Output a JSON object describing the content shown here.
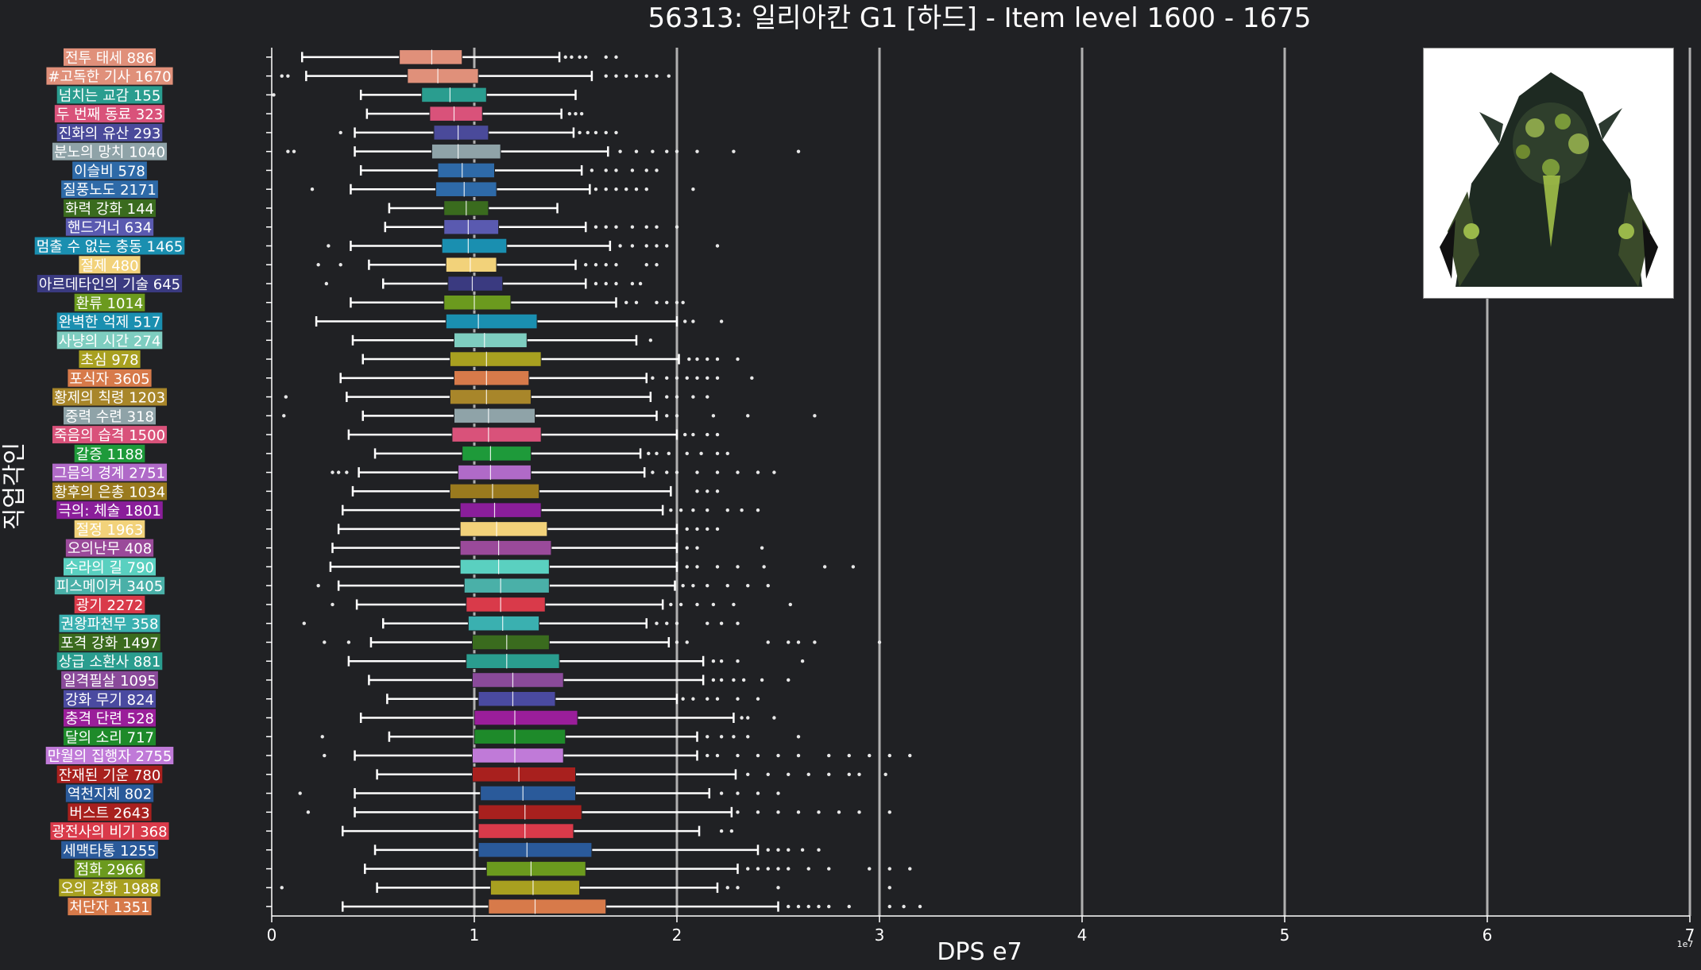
{
  "chart_data": {
    "type": "boxplot",
    "orientation": "horizontal",
    "title": "56313: 일리아칸 G1 [하드] - Item level 1600 - 1675",
    "xlabel": "DPS e7",
    "ylabel": "직업각인",
    "x_offset_label": "1e7",
    "xlim": [
      0,
      7
    ],
    "xticks": [
      0,
      1,
      2,
      3,
      4,
      5,
      6,
      7
    ],
    "grid": "vertical",
    "legend": "none",
    "series": [
      {
        "label": "전투 태세 886",
        "color": "#e0907a",
        "whisker_low": 0.15,
        "q1": 0.63,
        "median": 0.79,
        "q3": 0.94,
        "whisker_high": 1.42,
        "outliers": [
          1.45,
          1.48,
          1.52,
          1.55,
          1.65,
          1.7
        ]
      },
      {
        "label": "#고독한 기사 1670",
        "color": "#e0907a",
        "whisker_low": 0.17,
        "q1": 0.67,
        "median": 0.82,
        "q3": 1.02,
        "whisker_high": 1.58,
        "outliers": [
          0.05,
          0.08,
          1.65,
          1.7,
          1.75,
          1.8,
          1.85,
          1.9,
          1.96
        ]
      },
      {
        "label": "넘치는 교감 155",
        "color": "#2a9d8f",
        "whisker_low": 0.44,
        "q1": 0.74,
        "median": 0.88,
        "q3": 1.06,
        "whisker_high": 1.5,
        "outliers": [
          0.01
        ]
      },
      {
        "label": "두 번째 동료 323",
        "color": "#d9527a",
        "whisker_low": 0.47,
        "q1": 0.78,
        "median": 0.9,
        "q3": 1.04,
        "whisker_high": 1.43,
        "outliers": [
          1.47,
          1.5,
          1.53
        ]
      },
      {
        "label": "진화의 유산 293",
        "color": "#4a4a9a",
        "whisker_low": 0.41,
        "q1": 0.8,
        "median": 0.92,
        "q3": 1.07,
        "whisker_high": 1.49,
        "outliers": [
          0.34,
          1.52,
          1.56,
          1.6,
          1.65,
          1.7
        ]
      },
      {
        "label": "분노의 망치 1040",
        "color": "#8fa3a8",
        "whisker_low": 0.41,
        "q1": 0.79,
        "median": 0.92,
        "q3": 1.13,
        "whisker_high": 1.66,
        "outliers": [
          0.08,
          0.11,
          1.72,
          1.8,
          1.88,
          1.95,
          2.0,
          2.1,
          2.28,
          2.6
        ]
      },
      {
        "label": "이슬비 578",
        "color": "#2e6aa8",
        "whisker_low": 0.44,
        "q1": 0.82,
        "median": 0.94,
        "q3": 1.1,
        "whisker_high": 1.53,
        "outliers": [
          1.58,
          1.65,
          1.7,
          1.78,
          1.85,
          1.9
        ]
      },
      {
        "label": "질풍노도 2171",
        "color": "#2e6aa8",
        "whisker_low": 0.39,
        "q1": 0.81,
        "median": 0.95,
        "q3": 1.11,
        "whisker_high": 1.57,
        "outliers": [
          0.2,
          1.6,
          1.65,
          1.7,
          1.75,
          1.8,
          1.85,
          2.08
        ]
      },
      {
        "label": "화력 강화 144",
        "color": "#3a6b1e",
        "whisker_low": 0.58,
        "q1": 0.85,
        "median": 0.96,
        "q3": 1.07,
        "whisker_high": 1.41,
        "outliers": []
      },
      {
        "label": "핸드거너 634",
        "color": "#5a5ab0",
        "whisker_low": 0.56,
        "q1": 0.85,
        "median": 0.97,
        "q3": 1.12,
        "whisker_high": 1.55,
        "outliers": [
          1.6,
          1.65,
          1.7,
          1.78,
          1.85,
          1.9,
          2.0
        ]
      },
      {
        "label": "멈출 수 없는 충동 1465",
        "color": "#1a8fb0",
        "whisker_low": 0.39,
        "q1": 0.84,
        "median": 0.97,
        "q3": 1.16,
        "whisker_high": 1.67,
        "outliers": [
          0.28,
          1.72,
          1.78,
          1.85,
          1.9,
          1.95,
          2.2
        ]
      },
      {
        "label": "절제 480",
        "color": "#f2d27a",
        "whisker_low": 0.48,
        "q1": 0.86,
        "median": 0.98,
        "q3": 1.11,
        "whisker_high": 1.5,
        "outliers": [
          0.23,
          0.34,
          1.55,
          1.6,
          1.65,
          1.7,
          1.85,
          1.9
        ]
      },
      {
        "label": "아르데타인의 기술 645",
        "color": "#3a3a80",
        "whisker_low": 0.55,
        "q1": 0.87,
        "median": 0.99,
        "q3": 1.14,
        "whisker_high": 1.55,
        "outliers": [
          0.27,
          1.6,
          1.65,
          1.7,
          1.78,
          1.82
        ]
      },
      {
        "label": "환류 1014",
        "color": "#6b9a1e",
        "whisker_low": 0.39,
        "q1": 0.85,
        "median": 1.0,
        "q3": 1.18,
        "whisker_high": 1.7,
        "outliers": [
          1.75,
          1.8,
          1.9,
          1.95,
          2.0,
          2.03
        ]
      },
      {
        "label": "완벽한 억제 517",
        "color": "#1a8fb0",
        "whisker_low": 0.22,
        "q1": 0.86,
        "median": 1.02,
        "q3": 1.31,
        "whisker_high": 2.0,
        "outliers": [
          2.04,
          2.08,
          2.22
        ]
      },
      {
        "label": "사냥의 시간 274",
        "color": "#7ecdc0",
        "whisker_low": 0.4,
        "q1": 0.9,
        "median": 1.05,
        "q3": 1.26,
        "whisker_high": 1.8,
        "outliers": [
          1.87
        ]
      },
      {
        "label": "초심 978",
        "color": "#a8a020",
        "whisker_low": 0.45,
        "q1": 0.88,
        "median": 1.06,
        "q3": 1.33,
        "whisker_high": 2.01,
        "outliers": [
          2.06,
          2.1,
          2.15,
          2.2,
          2.3
        ]
      },
      {
        "label": "포식자 3605",
        "color": "#d77a4a",
        "whisker_low": 0.34,
        "q1": 0.9,
        "median": 1.06,
        "q3": 1.27,
        "whisker_high": 1.85,
        "outliers": [
          1.88,
          1.95,
          2.0,
          2.05,
          2.1,
          2.15,
          2.2,
          2.37
        ]
      },
      {
        "label": "황제의 칙령 1203",
        "color": "#a8862a",
        "whisker_low": 0.37,
        "q1": 0.88,
        "median": 1.06,
        "q3": 1.28,
        "whisker_high": 1.87,
        "outliers": [
          0.07,
          1.95,
          2.0,
          2.08,
          2.15
        ]
      },
      {
        "label": "중력 수련 318",
        "color": "#8fa3a8",
        "whisker_low": 0.45,
        "q1": 0.9,
        "median": 1.07,
        "q3": 1.3,
        "whisker_high": 1.9,
        "outliers": [
          0.06,
          1.95,
          2.0,
          2.18,
          2.35,
          2.68
        ]
      },
      {
        "label": "죽음의 습격 1500",
        "color": "#d9527a",
        "whisker_low": 0.38,
        "q1": 0.89,
        "median": 1.07,
        "q3": 1.33,
        "whisker_high": 2.0,
        "outliers": [
          2.04,
          2.08,
          2.15,
          2.2
        ]
      },
      {
        "label": "갈증 1188",
        "color": "#1e9a3a",
        "whisker_low": 0.51,
        "q1": 0.94,
        "median": 1.08,
        "q3": 1.28,
        "whisker_high": 1.82,
        "outliers": [
          1.86,
          1.9,
          1.96,
          2.05,
          2.12,
          2.2,
          2.25
        ]
      },
      {
        "label": "그믐의 경계 2751",
        "color": "#b06ac8",
        "whisker_low": 0.43,
        "q1": 0.92,
        "median": 1.08,
        "q3": 1.28,
        "whisker_high": 1.84,
        "outliers": [
          0.3,
          0.33,
          0.37,
          1.88,
          1.95,
          2.0,
          2.1,
          2.2,
          2.3,
          2.4,
          2.48
        ]
      },
      {
        "label": "황후의 은총 1034",
        "color": "#9a7a1e",
        "whisker_low": 0.4,
        "q1": 0.88,
        "median": 1.09,
        "q3": 1.32,
        "whisker_high": 1.97,
        "outliers": [
          2.1,
          2.15,
          2.2
        ]
      },
      {
        "label": "극의: 체술 1801",
        "color": "#8a1e9a",
        "whisker_low": 0.35,
        "q1": 0.93,
        "median": 1.1,
        "q3": 1.33,
        "whisker_high": 1.93,
        "outliers": [
          1.97,
          2.02,
          2.08,
          2.15,
          2.25,
          2.32,
          2.4
        ]
      },
      {
        "label": "절정 1963",
        "color": "#f2d27a",
        "whisker_low": 0.33,
        "q1": 0.93,
        "median": 1.11,
        "q3": 1.36,
        "whisker_high": 2.0,
        "outliers": [
          2.05,
          2.1,
          2.15,
          2.2
        ]
      },
      {
        "label": "오의난무 408",
        "color": "#9a4a9a",
        "whisker_low": 0.3,
        "q1": 0.93,
        "median": 1.12,
        "q3": 1.38,
        "whisker_high": 2.0,
        "outliers": [
          2.05,
          2.1,
          2.42
        ]
      },
      {
        "label": "수라의 길 790",
        "color": "#5ad0c0",
        "whisker_low": 0.29,
        "q1": 0.93,
        "median": 1.12,
        "q3": 1.37,
        "whisker_high": 2.0,
        "outliers": [
          2.05,
          2.1,
          2.2,
          2.3,
          2.43,
          2.73,
          2.87
        ]
      },
      {
        "label": "피스메이커 3405",
        "color": "#4ab0a8",
        "whisker_low": 0.33,
        "q1": 0.95,
        "median": 1.13,
        "q3": 1.37,
        "whisker_high": 1.99,
        "outliers": [
          0.23,
          2.03,
          2.08,
          2.15,
          2.25,
          2.35,
          2.45
        ]
      },
      {
        "label": "광기 2272",
        "color": "#d93a4a",
        "whisker_low": 0.42,
        "q1": 0.96,
        "median": 1.13,
        "q3": 1.35,
        "whisker_high": 1.93,
        "outliers": [
          0.3,
          1.97,
          2.02,
          2.1,
          2.18,
          2.28,
          2.56
        ]
      },
      {
        "label": "권왕파천무 358",
        "color": "#3ab0b0",
        "whisker_low": 0.55,
        "q1": 0.97,
        "median": 1.14,
        "q3": 1.32,
        "whisker_high": 1.85,
        "outliers": [
          0.16,
          1.9,
          1.95,
          2.0,
          2.15,
          2.22,
          2.3
        ]
      },
      {
        "label": "포격 강화 1497",
        "color": "#3a6b1e",
        "whisker_low": 0.49,
        "q1": 0.99,
        "median": 1.16,
        "q3": 1.37,
        "whisker_high": 1.96,
        "outliers": [
          0.26,
          0.38,
          2.0,
          2.05,
          2.45,
          2.55,
          2.6,
          2.68,
          3.0
        ]
      },
      {
        "label": "상급 소환사 881",
        "color": "#2a9d8f",
        "whisker_low": 0.38,
        "q1": 0.96,
        "median": 1.16,
        "q3": 1.42,
        "whisker_high": 2.13,
        "outliers": [
          2.18,
          2.22,
          2.3,
          2.62
        ]
      },
      {
        "label": "일격필살 1095",
        "color": "#8a4a9a",
        "whisker_low": 0.48,
        "q1": 0.99,
        "median": 1.19,
        "q3": 1.44,
        "whisker_high": 2.13,
        "outliers": [
          2.18,
          2.22,
          2.28,
          2.33,
          2.42,
          2.55
        ]
      },
      {
        "label": "강화 무기 824",
        "color": "#4a4aa0",
        "whisker_low": 0.57,
        "q1": 1.02,
        "median": 1.19,
        "q3": 1.4,
        "whisker_high": 2.0,
        "outliers": [
          2.03,
          2.08,
          2.15,
          2.2,
          2.3,
          2.4
        ]
      },
      {
        "label": "충격 단련 528",
        "color": "#9a1e9a",
        "whisker_low": 0.44,
        "q1": 1.0,
        "median": 1.2,
        "q3": 1.51,
        "whisker_high": 2.28,
        "outliers": [
          2.32,
          2.35,
          2.48
        ]
      },
      {
        "label": "달의 소리 717",
        "color": "#1e8a2a",
        "whisker_low": 0.58,
        "q1": 1.0,
        "median": 1.2,
        "q3": 1.45,
        "whisker_high": 2.1,
        "outliers": [
          0.25,
          2.15,
          2.22,
          2.28,
          2.35,
          2.6
        ]
      },
      {
        "label": "만월의 집행자 2755",
        "color": "#c07ad8",
        "whisker_low": 0.41,
        "q1": 0.99,
        "median": 1.2,
        "q3": 1.44,
        "whisker_high": 2.1,
        "outliers": [
          0.26,
          2.15,
          2.2,
          2.3,
          2.4,
          2.5,
          2.6,
          2.75,
          2.85,
          2.95,
          3.05,
          3.15
        ]
      },
      {
        "label": "잔재된 기운 780",
        "color": "#a8201e",
        "whisker_low": 0.52,
        "q1": 0.99,
        "median": 1.22,
        "q3": 1.5,
        "whisker_high": 2.29,
        "outliers": [
          2.35,
          2.45,
          2.55,
          2.65,
          2.75,
          2.85,
          2.9,
          3.03
        ]
      },
      {
        "label": "역천지체 802",
        "color": "#2a5a9a",
        "whisker_low": 0.41,
        "q1": 1.03,
        "median": 1.24,
        "q3": 1.5,
        "whisker_high": 2.16,
        "outliers": [
          0.14,
          2.22,
          2.3,
          2.4,
          2.5
        ]
      },
      {
        "label": "버스트 2643",
        "color": "#a8201e",
        "whisker_low": 0.41,
        "q1": 1.02,
        "median": 1.25,
        "q3": 1.53,
        "whisker_high": 2.27,
        "outliers": [
          0.18,
          2.3,
          2.4,
          2.5,
          2.6,
          2.7,
          2.8,
          2.9,
          3.05
        ]
      },
      {
        "label": "광전사의 비기 368",
        "color": "#d93a4a",
        "whisker_low": 0.35,
        "q1": 1.02,
        "median": 1.25,
        "q3": 1.49,
        "whisker_high": 2.11,
        "outliers": [
          2.22,
          2.27
        ]
      },
      {
        "label": "세맥타통 1255",
        "color": "#2a5a9a",
        "whisker_low": 0.51,
        "q1": 1.02,
        "median": 1.26,
        "q3": 1.58,
        "whisker_high": 2.4,
        "outliers": [
          2.45,
          2.5,
          2.55,
          2.62,
          2.7
        ]
      },
      {
        "label": "점화 2966",
        "color": "#6b9a1e",
        "whisker_low": 0.46,
        "q1": 1.06,
        "median": 1.28,
        "q3": 1.55,
        "whisker_high": 2.3,
        "outliers": [
          2.35,
          2.4,
          2.45,
          2.5,
          2.55,
          2.65,
          2.75,
          2.95,
          3.05,
          3.15
        ]
      },
      {
        "label": "오의 강화 1988",
        "color": "#a8a020",
        "whisker_low": 0.52,
        "q1": 1.08,
        "median": 1.29,
        "q3": 1.52,
        "whisker_high": 2.2,
        "outliers": [
          0.05,
          2.25,
          2.3,
          2.5,
          3.05
        ]
      },
      {
        "label": "처단자 1351",
        "color": "#d77a4a",
        "whisker_low": 0.35,
        "q1": 1.07,
        "median": 1.3,
        "q3": 1.65,
        "whisker_high": 2.5,
        "outliers": [
          2.55,
          2.6,
          2.65,
          2.7,
          2.75,
          2.85,
          3.05,
          3.12,
          3.2
        ]
      }
    ]
  },
  "portrait": {
    "icon": "dark-armored-boss-portrait"
  }
}
